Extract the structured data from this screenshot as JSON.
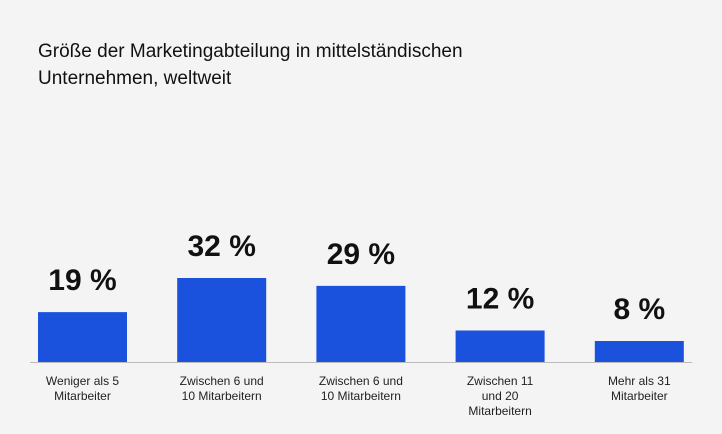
{
  "chart_data": {
    "type": "bar",
    "title": "Größe der Marketingabteilung in mittelständischen Unternehmen, weltweit",
    "categories": [
      "Weniger als 5 Mitarbeiter",
      "Zwischen 6 und 10 Mitarbeitern",
      "Zwischen 6 und 10 Mitarbeitern",
      "Zwischen 11 und 20 Mitarbeitern",
      "Mehr als 31 Mitarbeiter"
    ],
    "values": [
      19,
      32,
      29,
      12,
      8
    ],
    "value_labels": [
      "19 %",
      "32 %",
      "29 %",
      "12 %",
      "8 %"
    ],
    "color": "#1a52de"
  }
}
